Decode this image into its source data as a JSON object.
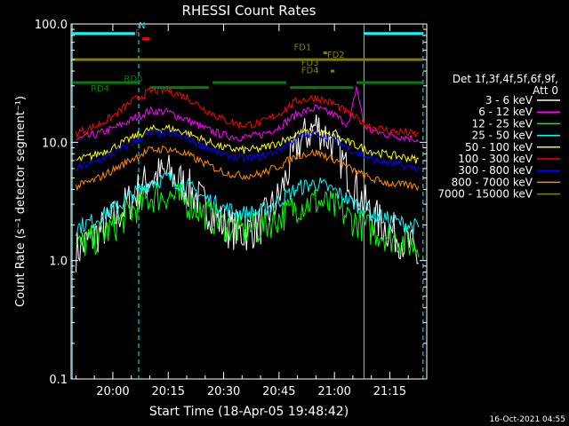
{
  "chart_data": {
    "type": "line",
    "title": "RHESSI Count Rates",
    "xlabel": "Start Time (18-Apr-05 19:48:42)",
    "ylabel": "Count Rate (s⁻¹ detector segment⁻¹)",
    "yscale": "log",
    "ylim": [
      0.1,
      100.0
    ],
    "xlim": [
      "19:48:42",
      "21:25:00"
    ],
    "x_ticks": [
      "20:00",
      "20:15",
      "20:30",
      "20:45",
      "21:00",
      "21:15"
    ],
    "y_ticks": [
      "0.1",
      "1.0",
      "10.0",
      "100.0"
    ],
    "grid": false,
    "legend_position": "right",
    "legend_header": [
      "Det 1f,3f,4f,5f,6f,9f,",
      "Att 0"
    ],
    "series": [
      {
        "name": "3 - 6 keV",
        "color": "#ffffff",
        "x": [
          "19:50",
          "19:55",
          "20:00",
          "20:05",
          "20:10",
          "20:15",
          "20:20",
          "20:25",
          "20:30",
          "20:35",
          "20:40",
          "20:45",
          "20:50",
          "20:55",
          "21:00",
          "21:05",
          "21:10",
          "21:15",
          "21:20",
          "21:23"
        ],
        "y": [
          1.2,
          1.6,
          2.2,
          3.3,
          5.0,
          5.5,
          4.2,
          2.9,
          2.0,
          1.7,
          2.0,
          3.4,
          9.5,
          14.0,
          9.5,
          4.5,
          2.4,
          1.8,
          1.4,
          1.0
        ]
      },
      {
        "name": "6 - 12 keV",
        "color": "#ff00ff",
        "x": [
          "19:50",
          "19:55",
          "20:00",
          "20:05",
          "20:10",
          "20:15",
          "20:20",
          "20:25",
          "20:30",
          "20:35",
          "20:40",
          "20:45",
          "20:50",
          "20:55",
          "21:00",
          "21:04",
          "21:06",
          "21:08",
          "21:10",
          "21:15",
          "21:20",
          "21:23"
        ],
        "y": [
          10.5,
          11.5,
          13.0,
          15.5,
          18.5,
          18.0,
          15.5,
          13.0,
          11.5,
          11.0,
          11.5,
          13.5,
          17.5,
          19.5,
          17.0,
          14.0,
          30.0,
          14.0,
          12.5,
          11.5,
          11.0,
          10.5
        ]
      },
      {
        "name": "12 - 25 keV",
        "color": "#00ff00",
        "x": [
          "19:50",
          "19:55",
          "20:00",
          "20:05",
          "20:10",
          "20:15",
          "20:20",
          "20:25",
          "20:30",
          "20:35",
          "20:40",
          "20:45",
          "20:50",
          "20:55",
          "21:00",
          "21:05",
          "21:10",
          "21:15",
          "21:20",
          "21:23"
        ],
        "y": [
          1.3,
          1.5,
          1.9,
          2.6,
          3.4,
          3.6,
          3.1,
          2.5,
          2.0,
          1.8,
          1.9,
          2.3,
          2.9,
          3.2,
          2.8,
          2.2,
          1.8,
          1.6,
          1.4,
          1.3
        ]
      },
      {
        "name": "25 - 50 keV",
        "color": "#00ffff",
        "x": [
          "19:50",
          "19:55",
          "20:00",
          "20:05",
          "20:10",
          "20:15",
          "20:20",
          "20:25",
          "20:30",
          "20:35",
          "20:40",
          "20:45",
          "20:50",
          "20:55",
          "21:00",
          "21:05",
          "21:10",
          "21:15",
          "21:20",
          "21:23"
        ],
        "y": [
          1.9,
          2.2,
          2.7,
          3.5,
          4.6,
          5.0,
          4.3,
          3.4,
          2.8,
          2.5,
          2.6,
          3.2,
          4.1,
          4.5,
          3.9,
          3.1,
          2.5,
          2.2,
          2.0,
          1.9
        ]
      },
      {
        "name": "50 - 100 keV",
        "color": "#ffff00",
        "x": [
          "19:50",
          "19:55",
          "20:00",
          "20:05",
          "20:10",
          "20:15",
          "20:20",
          "20:25",
          "20:30",
          "20:35",
          "20:40",
          "20:45",
          "20:50",
          "20:55",
          "21:00",
          "21:05",
          "21:10",
          "21:15",
          "21:20",
          "21:23"
        ],
        "y": [
          7.0,
          7.8,
          9.0,
          10.8,
          12.8,
          13.2,
          12.0,
          10.3,
          9.0,
          8.6,
          8.8,
          10.0,
          11.8,
          12.4,
          11.2,
          9.6,
          8.4,
          7.8,
          7.4,
          7.0
        ]
      },
      {
        "name": "100 - 300 keV",
        "color": "#ff0000",
        "x": [
          "19:50",
          "19:55",
          "20:00",
          "20:05",
          "20:10",
          "20:15",
          "20:20",
          "20:25",
          "20:30",
          "20:35",
          "20:40",
          "20:45",
          "20:50",
          "20:55",
          "21:00",
          "21:05",
          "21:10",
          "21:15",
          "21:20",
          "21:23"
        ],
        "y": [
          12.0,
          13.5,
          16.5,
          22.0,
          27.0,
          27.5,
          24.0,
          19.0,
          15.5,
          14.0,
          14.5,
          17.5,
          22.5,
          24.0,
          21.0,
          16.5,
          13.5,
          12.5,
          12.0,
          11.5
        ]
      },
      {
        "name": "300 - 800 keV",
        "color": "#0000ff",
        "x": [
          "19:50",
          "19:55",
          "20:00",
          "20:05",
          "20:10",
          "20:15",
          "20:20",
          "20:25",
          "20:30",
          "20:35",
          "20:40",
          "20:45",
          "20:50",
          "20:55",
          "21:00",
          "21:05",
          "21:10",
          "21:15",
          "21:20",
          "21:23"
        ],
        "y": [
          6.0,
          6.8,
          8.0,
          9.8,
          11.8,
          12.0,
          10.8,
          9.2,
          7.8,
          7.3,
          7.5,
          8.7,
          11.0,
          12.0,
          10.5,
          8.5,
          7.2,
          6.6,
          6.2,
          6.0
        ]
      },
      {
        "name": "800 - 7000 keV",
        "color": "#ff8c00",
        "x": [
          "19:50",
          "19:55",
          "20:00",
          "20:05",
          "20:10",
          "20:15",
          "20:20",
          "20:25",
          "20:30",
          "20:35",
          "20:40",
          "20:45",
          "20:50",
          "20:55",
          "21:00",
          "21:05",
          "21:10",
          "21:15",
          "21:20",
          "21:23"
        ],
        "y": [
          4.2,
          4.8,
          5.8,
          7.2,
          8.6,
          8.8,
          7.9,
          6.6,
          5.6,
          5.2,
          5.4,
          6.3,
          7.8,
          8.2,
          7.2,
          5.8,
          4.9,
          4.5,
          4.3,
          4.2
        ]
      },
      {
        "name": "7000 - 15000 keV",
        "color": "#808000",
        "x": [
          "19:49",
          "21:25"
        ],
        "y": [
          50.0,
          50.0
        ]
      }
    ],
    "annotations": [
      {
        "text": "N",
        "color": "#00ffff",
        "x": "20:07",
        "y": 92.0
      },
      {
        "text": "F",
        "color": "#ff0000",
        "x": "20:06",
        "y": 80.0
      },
      {
        "text": "FD1",
        "color": "#808000",
        "x": "20:49",
        "y": 60.0
      },
      {
        "text": "FD2",
        "color": "#808000",
        "x": "20:58",
        "y": 52.0
      },
      {
        "text": "FD3",
        "color": "#808000",
        "x": "20:51",
        "y": 44.5
      },
      {
        "text": "FD4",
        "color": "#808000",
        "x": "20:51",
        "y": 38.5
      },
      {
        "text": "RD0",
        "color": "#008000",
        "x": "20:03",
        "y": 32.5
      },
      {
        "text": "RD4",
        "color": "#008000",
        "x": "19:54",
        "y": 27.0
      }
    ],
    "attenuator_flags": {
      "N": {
        "color": "#00ffff",
        "y": 83.0,
        "segments": [
          [
            "19:49",
            "20:06"
          ],
          [
            "21:08",
            "21:24"
          ]
        ]
      },
      "F": {
        "color": "#ff0000",
        "y": 75.0,
        "segments": [
          [
            "20:08",
            "20:10"
          ]
        ]
      },
      "FD": {
        "color": "#808000",
        "y": 50.0,
        "segments": [
          [
            "19:49",
            "21:24"
          ]
        ]
      },
      "FD1_marker": {
        "color": "#808000",
        "y": 57.0,
        "segments": [
          [
            "20:57",
            "20:58"
          ]
        ]
      },
      "FD4_marker": {
        "color": "#808000",
        "y": 40.0,
        "segments": [
          [
            "20:59",
            "21:00"
          ]
        ]
      },
      "RD": {
        "color": "#008000",
        "y": 32.0,
        "segments": [
          [
            "19:49",
            "20:07"
          ],
          [
            "20:27",
            "20:47"
          ],
          [
            "21:06",
            "21:24"
          ]
        ]
      },
      "RD4": {
        "color": "#008000",
        "y": 29.0,
        "segments": [
          [
            "20:10",
            "20:26"
          ],
          [
            "20:48",
            "21:05"
          ]
        ]
      }
    },
    "vlines": [
      {
        "x": "19:49",
        "color": "#00ffff",
        "style": "solid"
      },
      {
        "x": "20:07",
        "color": "#00ffff",
        "style": "dashed"
      },
      {
        "x": "21:08",
        "color": "#00ffff",
        "style": "solid"
      },
      {
        "x": "21:24",
        "color": "#00ffff",
        "style": "dashed"
      }
    ]
  },
  "timestamp": "16-Oct-2021 04:55"
}
